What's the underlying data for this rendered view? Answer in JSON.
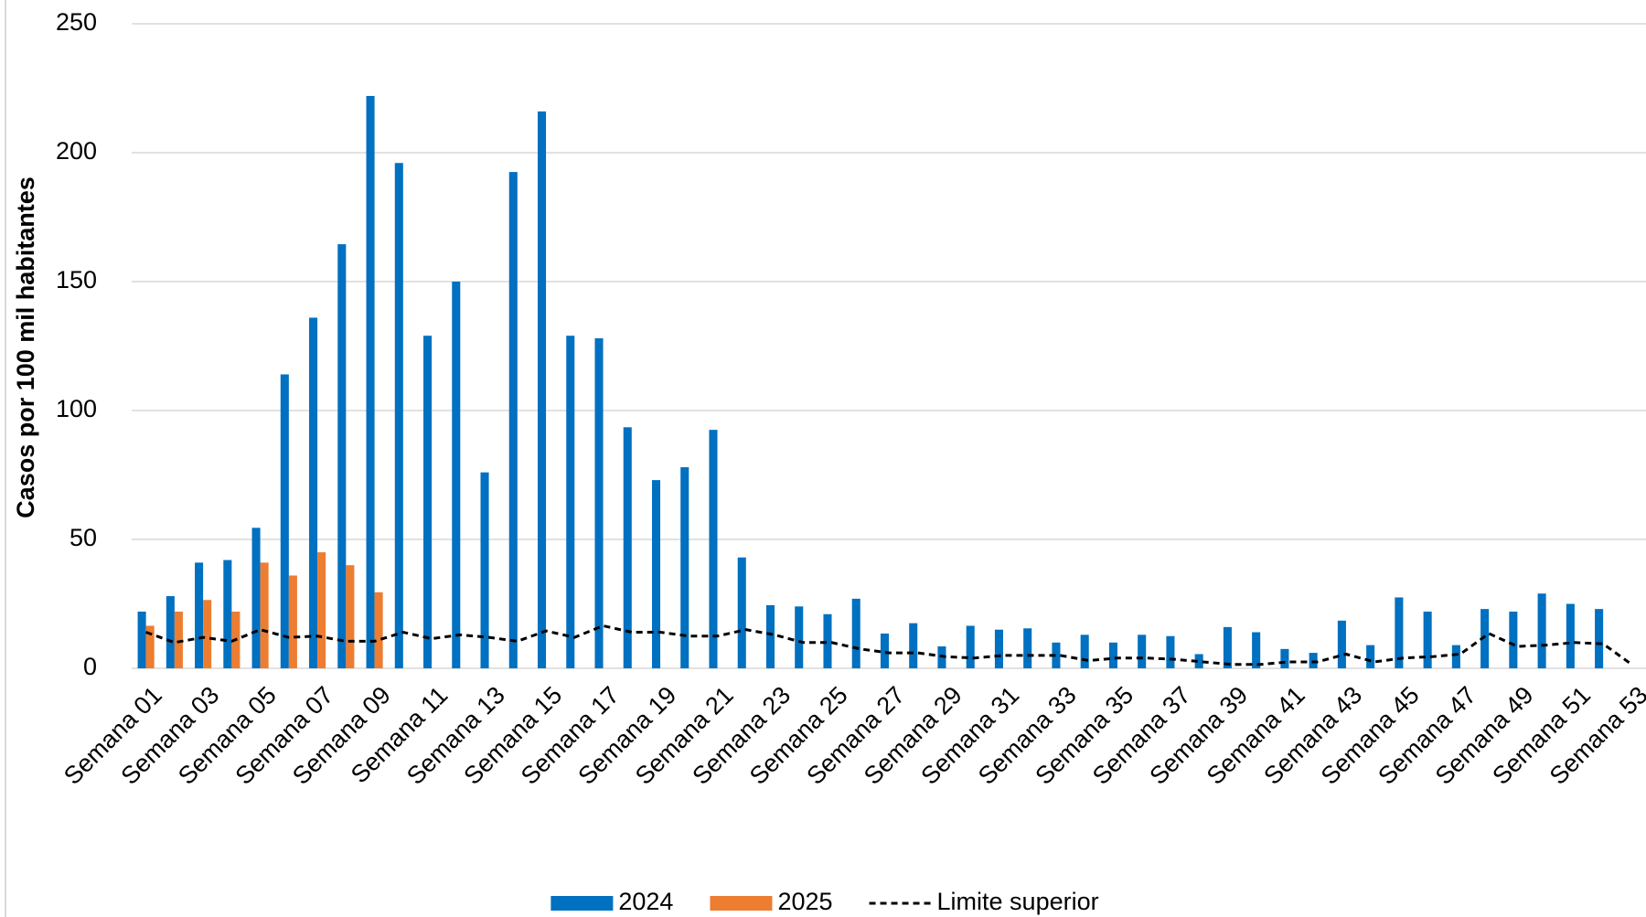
{
  "chart_data": {
    "type": "bar",
    "y_label": "Casos por 100 mil habitantes",
    "categories": [
      "Semana 01",
      null,
      "Semana 03",
      null,
      "Semana 05",
      null,
      "Semana 07",
      null,
      "Semana 09",
      null,
      "Semana 11",
      null,
      "Semana 13",
      null,
      "Semana 15",
      null,
      "Semana 17",
      null,
      "Semana 19",
      null,
      "Semana 21",
      null,
      "Semana 23",
      null,
      "Semana 25",
      null,
      "Semana 27",
      null,
      "Semana 29",
      null,
      "Semana 31",
      null,
      "Semana 33",
      null,
      "Semana 35",
      null,
      "Semana 37",
      null,
      "Semana 39",
      null,
      "Semana 41",
      null,
      "Semana 43",
      null,
      "Semana 45",
      null,
      "Semana 47",
      null,
      "Semana 49",
      null,
      "Semana 51",
      null,
      "Semana 53"
    ],
    "series": [
      {
        "name": "2024",
        "type": "bar",
        "color": "#0070c0",
        "values": [
          22,
          28,
          41,
          42,
          54.5,
          114,
          136,
          164.5,
          222,
          196,
          129,
          150,
          76,
          192.5,
          216,
          129,
          128,
          93.5,
          73,
          78,
          92.5,
          43,
          24.5,
          24,
          21,
          27,
          13.5,
          17.5,
          8.5,
          16.5,
          15,
          15.5,
          10,
          13,
          10,
          13,
          12.5,
          5.5,
          16,
          14,
          7.5,
          6,
          18.5,
          9,
          27.5,
          22,
          9,
          23,
          22,
          29,
          25,
          23,
          null
        ]
      },
      {
        "name": "2025",
        "type": "bar",
        "color": "#ed7d31",
        "values": [
          16.5,
          22,
          26.5,
          22,
          41,
          36,
          45,
          40,
          29.5,
          null,
          null,
          null,
          null,
          null,
          null,
          null,
          null,
          null,
          null,
          null,
          null,
          null,
          null,
          null,
          null,
          null,
          null,
          null,
          null,
          null,
          null,
          null,
          null,
          null,
          null,
          null,
          null,
          null,
          null,
          null,
          null,
          null,
          null,
          null,
          null,
          null,
          null,
          null,
          null,
          null,
          null,
          null,
          null
        ]
      },
      {
        "name": "Limite superior",
        "type": "line",
        "color": "#000000",
        "line_style": "dashed",
        "values": [
          14,
          10,
          12,
          10.5,
          15,
          12,
          12.5,
          10.5,
          10.5,
          14,
          11.5,
          13,
          12,
          10.5,
          14.5,
          12,
          16.5,
          14,
          14,
          12.5,
          12.5,
          15,
          13,
          10,
          10,
          7.5,
          6,
          6,
          4.5,
          4,
          5,
          5,
          5,
          3,
          4,
          4,
          3.5,
          2.5,
          1.5,
          1.5,
          2.5,
          2.5,
          5.5,
          2.5,
          4,
          4.5,
          5.5,
          13.5,
          8.5,
          9,
          10,
          9.5,
          1.5
        ]
      }
    ],
    "ylim": [
      0,
      250
    ],
    "yticks": [
      0,
      50,
      100,
      150,
      200,
      250
    ],
    "grid": true,
    "legend": "bottom"
  }
}
